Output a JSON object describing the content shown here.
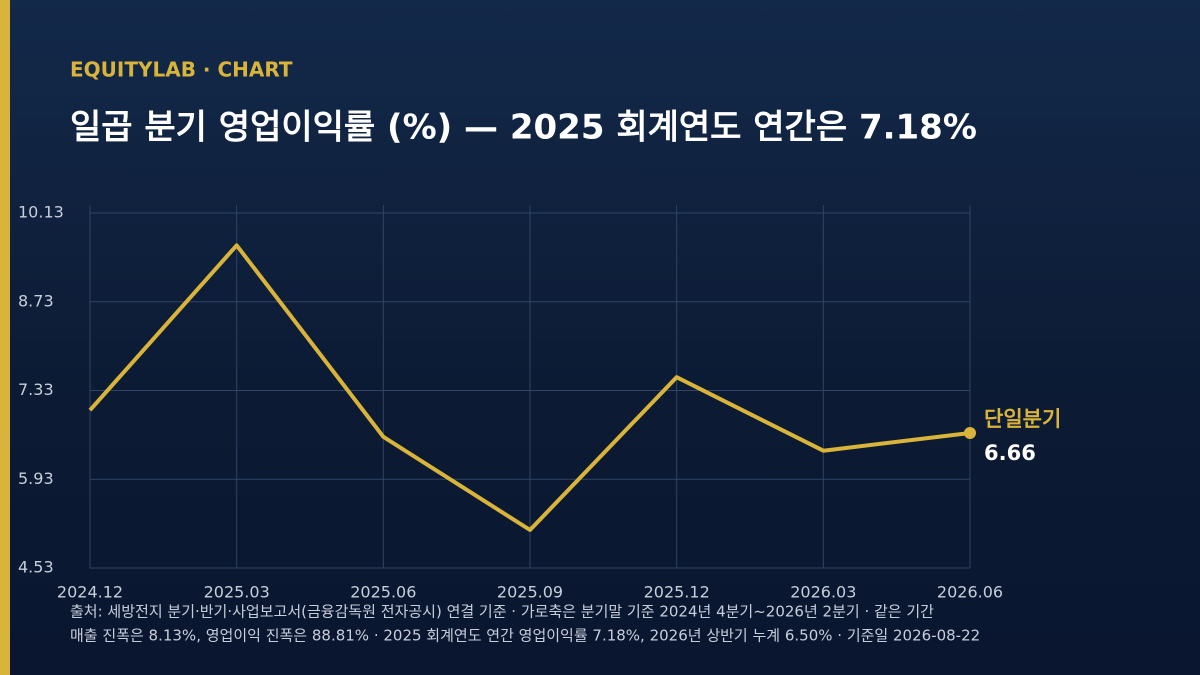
{
  "chart_data": {
    "type": "line",
    "kicker": "EQUITYLAB · CHART",
    "title": "일곱 분기 영업이익률 (%) — 2025 회계연도 연간은 7.18%",
    "categories": [
      "2024.12",
      "2025.03",
      "2025.06",
      "2025.09",
      "2025.12",
      "2026.03",
      "2026.06"
    ],
    "series": [
      {
        "name": "단일분기",
        "color": "#d9b43a",
        "values": [
          7.02,
          9.62,
          6.6,
          5.13,
          7.54,
          6.38,
          6.66
        ]
      }
    ],
    "ylim": [
      4.53,
      10.13
    ],
    "yticks": [
      4.53,
      5.93,
      7.33,
      8.73,
      10.13
    ],
    "grid": true,
    "notes": [
      "출처: 세방전지 분기·반기·사업보고서(금융감독원 전자공시) 연결 기준 · 가로축은 분기말 기준 2024년 4분기~2026년 2분기 · 같은 기간",
      "매출 진폭은 8.13%, 영업이익 진폭은 88.81% · 2025 회계연도 연간 영업이익률 7.18%, 2026년 상반기 누계 6.50% · 기준일 2026-08-22"
    ]
  }
}
